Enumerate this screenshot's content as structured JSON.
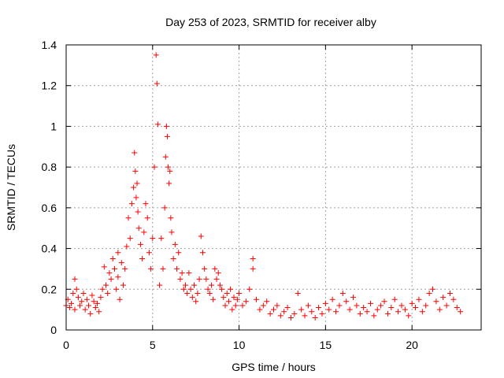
{
  "chart_data": {
    "type": "scatter",
    "title": "Day 253 of 2023, SRMTID for receiver alby",
    "xlabel": "GPS time / hours",
    "ylabel": "SRMTID / TECUs",
    "xlim": [
      0,
      24
    ],
    "ylim": [
      0,
      1.4
    ],
    "xticks": [
      0,
      5,
      10,
      15,
      20
    ],
    "xtick_labels": [
      "0",
      "5",
      "10",
      "15",
      "20"
    ],
    "yticks": [
      0,
      0.2,
      0.4,
      0.6,
      0.8,
      1.0,
      1.2,
      1.4
    ],
    "ytick_labels": [
      "0",
      "0.2",
      "0.4",
      "0.6",
      "0.8",
      "1",
      "1.2",
      "1.4"
    ],
    "grid": true,
    "marker": "+",
    "marker_color": "#ff0000",
    "series": [
      {
        "name": "SRMTID",
        "x": [
          0.0,
          0.1,
          0.2,
          0.3,
          0.4,
          0.5,
          0.5,
          0.6,
          0.7,
          0.8,
          0.9,
          1.0,
          1.1,
          1.2,
          1.3,
          1.4,
          1.5,
          1.6,
          1.7,
          1.8,
          1.9,
          2.0,
          2.1,
          2.2,
          2.3,
          2.4,
          2.5,
          2.6,
          2.7,
          2.8,
          2.9,
          3.0,
          3.0,
          3.1,
          3.2,
          3.3,
          3.4,
          3.5,
          3.6,
          3.7,
          3.8,
          3.9,
          3.95,
          4.0,
          4.05,
          4.1,
          4.15,
          4.2,
          4.3,
          4.4,
          4.5,
          4.6,
          4.7,
          4.8,
          4.9,
          5.0,
          5.1,
          5.2,
          5.25,
          5.3,
          5.4,
          5.5,
          5.6,
          5.7,
          5.75,
          5.8,
          5.85,
          5.9,
          5.95,
          6.0,
          6.05,
          6.1,
          6.2,
          6.3,
          6.4,
          6.5,
          6.6,
          6.7,
          6.8,
          6.9,
          7.0,
          7.1,
          7.2,
          7.3,
          7.4,
          7.5,
          7.6,
          7.7,
          7.8,
          7.9,
          8.0,
          8.1,
          8.2,
          8.3,
          8.4,
          8.5,
          8.6,
          8.7,
          8.8,
          8.9,
          9.0,
          9.1,
          9.2,
          9.3,
          9.4,
          9.5,
          9.6,
          9.7,
          9.8,
          9.9,
          10.0,
          10.2,
          10.4,
          10.6,
          10.8,
          10.8,
          11.0,
          11.2,
          11.4,
          11.6,
          11.8,
          12.0,
          12.2,
          12.4,
          12.6,
          12.8,
          13.0,
          13.2,
          13.4,
          13.6,
          13.8,
          14.0,
          14.2,
          14.4,
          14.6,
          14.8,
          15.0,
          15.2,
          15.4,
          15.6,
          15.8,
          16.0,
          16.2,
          16.4,
          16.6,
          16.8,
          17.0,
          17.2,
          17.4,
          17.6,
          17.8,
          18.0,
          18.2,
          18.4,
          18.6,
          18.8,
          19.0,
          19.2,
          19.4,
          19.6,
          19.8,
          20.0,
          20.2,
          20.4,
          20.6,
          20.8,
          21.0,
          21.2,
          21.4,
          21.6,
          21.8,
          22.0,
          22.2,
          22.4,
          22.6,
          22.8
        ],
        "y": [
          0.12,
          0.15,
          0.11,
          0.13,
          0.18,
          0.25,
          0.1,
          0.2,
          0.16,
          0.12,
          0.14,
          0.18,
          0.1,
          0.15,
          0.12,
          0.08,
          0.17,
          0.14,
          0.11,
          0.13,
          0.09,
          0.16,
          0.2,
          0.31,
          0.22,
          0.18,
          0.28,
          0.25,
          0.35,
          0.3,
          0.2,
          0.38,
          0.26,
          0.15,
          0.33,
          0.22,
          0.3,
          0.41,
          0.55,
          0.45,
          0.62,
          0.7,
          0.87,
          0.78,
          0.65,
          0.72,
          0.58,
          0.5,
          0.42,
          0.35,
          0.48,
          0.62,
          0.55,
          0.38,
          0.3,
          0.45,
          0.8,
          1.35,
          1.21,
          1.01,
          0.22,
          0.45,
          0.3,
          0.6,
          0.85,
          1.0,
          0.95,
          0.8,
          0.72,
          0.78,
          0.55,
          0.48,
          0.35,
          0.42,
          0.3,
          0.38,
          0.25,
          0.28,
          0.2,
          0.22,
          0.18,
          0.28,
          0.2,
          0.16,
          0.22,
          0.14,
          0.18,
          0.25,
          0.46,
          0.38,
          0.3,
          0.25,
          0.2,
          0.18,
          0.22,
          0.15,
          0.3,
          0.25,
          0.28,
          0.22,
          0.2,
          0.16,
          0.12,
          0.18,
          0.14,
          0.2,
          0.1,
          0.16,
          0.12,
          0.15,
          0.18,
          0.12,
          0.14,
          0.2,
          0.35,
          0.3,
          0.15,
          0.1,
          0.12,
          0.14,
          0.08,
          0.1,
          0.12,
          0.07,
          0.09,
          0.11,
          0.06,
          0.08,
          0.18,
          0.1,
          0.07,
          0.12,
          0.09,
          0.06,
          0.11,
          0.08,
          0.13,
          0.1,
          0.15,
          0.09,
          0.12,
          0.18,
          0.14,
          0.1,
          0.16,
          0.12,
          0.08,
          0.11,
          0.09,
          0.13,
          0.07,
          0.1,
          0.12,
          0.14,
          0.08,
          0.11,
          0.15,
          0.09,
          0.12,
          0.1,
          0.07,
          0.13,
          0.11,
          0.15,
          0.09,
          0.12,
          0.18,
          0.2,
          0.14,
          0.1,
          0.16,
          0.12,
          0.18,
          0.15,
          0.11,
          0.09
        ]
      }
    ]
  }
}
